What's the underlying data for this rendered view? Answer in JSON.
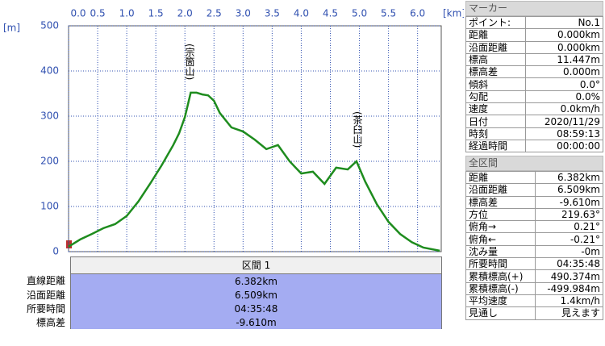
{
  "chart_data": {
    "type": "line",
    "y_unit": "[m]",
    "x_unit": "[km]",
    "annotations": [
      "(宗箇山)",
      "(茶臼山)"
    ],
    "series": [
      {
        "color": "#1e8c1e",
        "x": [
          0,
          0.2,
          0.4,
          0.6,
          0.8,
          1.0,
          1.2,
          1.4,
          1.6,
          1.8,
          1.9,
          2.0,
          2.1,
          2.2,
          2.3,
          2.4,
          2.5,
          2.6,
          2.8,
          3.0,
          3.2,
          3.4,
          3.6,
          3.8,
          4.0,
          4.2,
          4.4,
          4.6,
          4.8,
          4.95,
          5.1,
          5.3,
          5.5,
          5.7,
          5.9,
          6.1,
          6.382
        ],
        "values": [
          11,
          27,
          39,
          52,
          61,
          79,
          111,
          150,
          191,
          236,
          262,
          298,
          352,
          352,
          348,
          346,
          334,
          307,
          275,
          266,
          248,
          227,
          236,
          200,
          173,
          177,
          150,
          186,
          182,
          200,
          155,
          105,
          66,
          39,
          21,
          9,
          2
        ]
      }
    ],
    "xlim": [
      0,
      6.4
    ],
    "ylim": [
      0,
      500
    ],
    "xticks": [
      {
        "value": 0,
        "label": "0.0"
      },
      0.5,
      {
        "value": 1,
        "label": "1.0"
      },
      1.5,
      {
        "value": 2,
        "label": "2.0"
      },
      2.5,
      {
        "value": 3,
        "label": "3.0"
      },
      3.5,
      {
        "value": 4,
        "label": "4.0"
      },
      4.5,
      {
        "value": 5,
        "label": "5.0"
      },
      5.5,
      {
        "value": 6,
        "label": "6.0"
      }
    ],
    "yticks": [
      0,
      100,
      200,
      300,
      400,
      500
    ],
    "grid": true
  },
  "section_table": {
    "title": "区間 1",
    "rows": [
      [
        "直線距離",
        "6.382km"
      ],
      [
        "沿面距離",
        "6.509km"
      ],
      [
        "所要時間",
        "04:35:48"
      ],
      [
        "標高差",
        "-9.610m"
      ]
    ]
  },
  "marker_panel": {
    "title": "マーカー",
    "rows": [
      [
        "ポイント:",
        "No.1"
      ],
      [
        "距離",
        "0.000km"
      ],
      [
        "沿面距離",
        "0.000km"
      ],
      [
        "標高",
        "11.447m"
      ],
      [
        "標高差",
        "0.000m"
      ],
      [
        "傾斜",
        "0.0°"
      ],
      [
        "勾配",
        "0.0%"
      ],
      [
        "速度",
        "0.0km/h"
      ],
      [
        "日付",
        "2020/11/29"
      ],
      [
        "時刻",
        "08:59:13"
      ],
      [
        "経過時間",
        "00:00:00"
      ]
    ]
  },
  "total_panel": {
    "title": "全区間",
    "rows": [
      [
        "距離",
        "6.382km"
      ],
      [
        "沿面距離",
        "6.509km"
      ],
      [
        "標高差",
        "-9.610m"
      ],
      [
        "方位",
        "219.63°"
      ],
      [
        "俯角→",
        "0.21°"
      ],
      [
        "俯角←",
        "-0.21°"
      ],
      [
        "沈み量",
        "-0m"
      ],
      [
        "所要時間",
        "04:35:48"
      ],
      [
        "累積標高(+)",
        "490.374m"
      ],
      [
        "累積標高(-)",
        "-499.984m"
      ],
      [
        "平均速度",
        "1.4km/h"
      ],
      [
        "見通し",
        "見えます"
      ]
    ]
  }
}
